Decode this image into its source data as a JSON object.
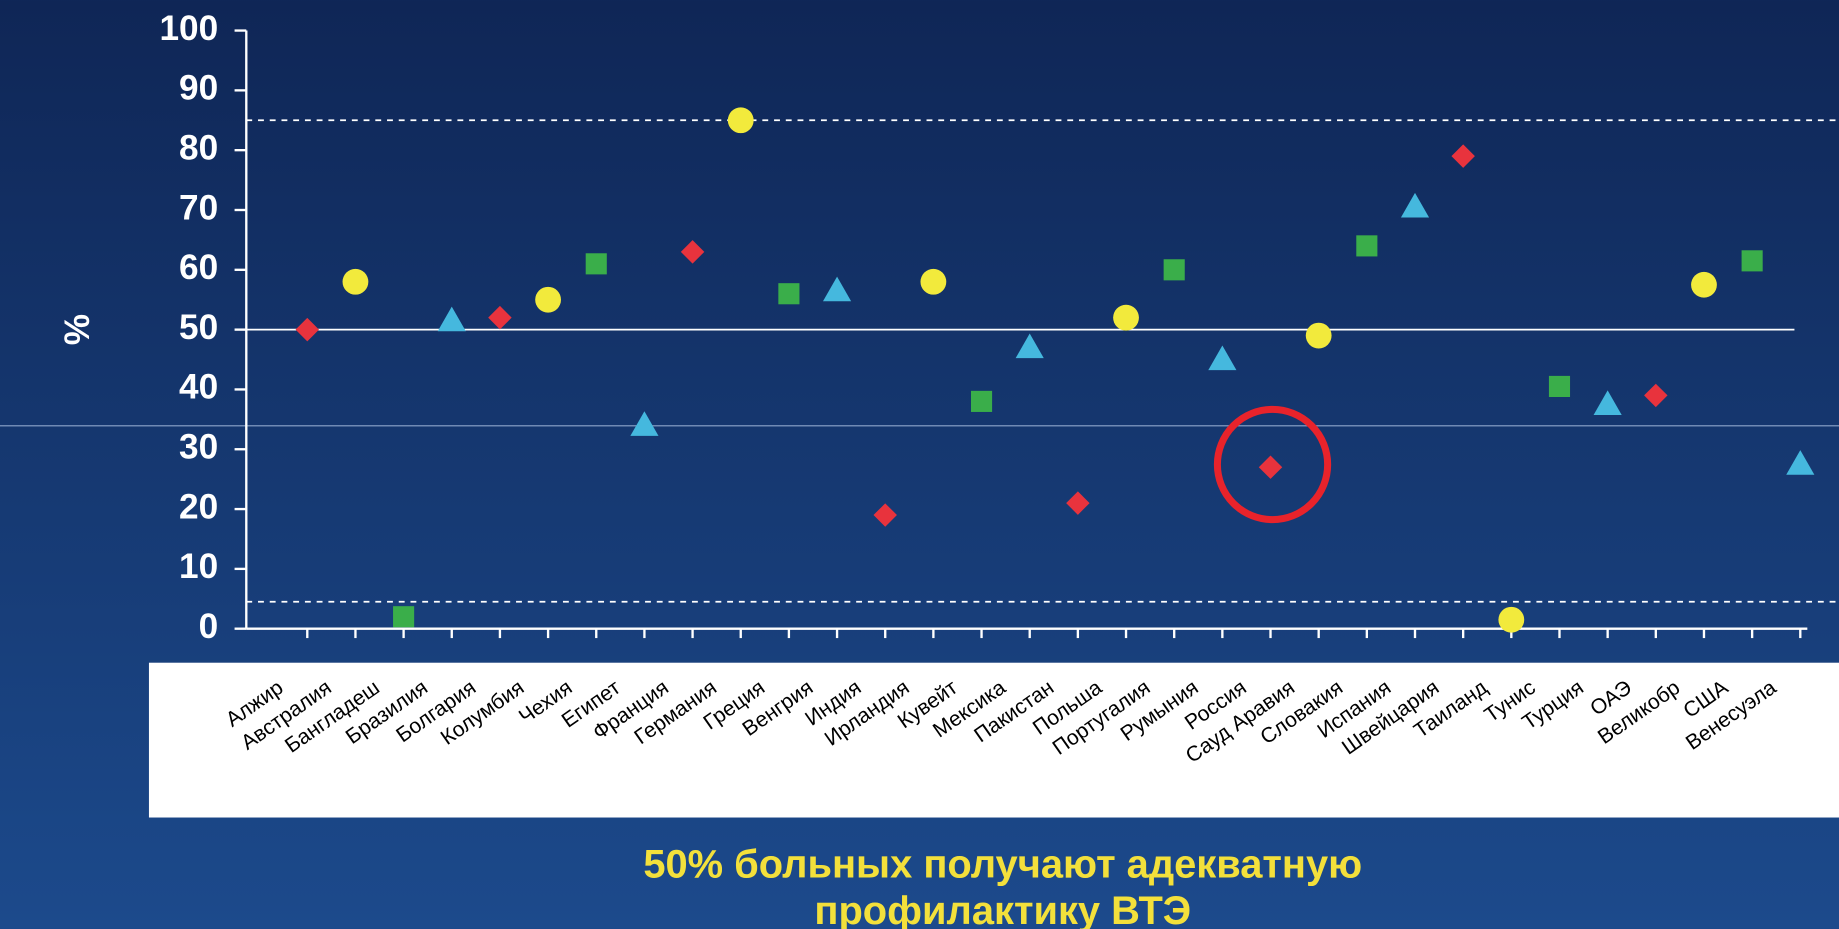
{
  "chart_data": {
    "type": "scatter",
    "y_label": "%",
    "title": [
      "50% больных получают адекватную",
      "профилактику ВТЭ"
    ],
    "categories": [
      "Алжир",
      "Австралия",
      "Бангладеш",
      "Бразилия",
      "Болгария",
      "Колумбия",
      "Чехия",
      "Египет",
      "Франция",
      "Германия",
      "Греция",
      "Венгрия",
      "Индия",
      "Ирландия",
      "Кувейт",
      "Мексика",
      "Пакистан",
      "Польша",
      "Португалия",
      "Румыния",
      "Россия",
      "Сауд Аравия",
      "Словакия",
      "Испания",
      "Швейцария",
      "Таиланд",
      "Тунис",
      "Турция",
      "ОАЭ",
      "Великобр",
      "США",
      "Венесуэла"
    ],
    "values": [
      50,
      58,
      2,
      51.5,
      52,
      55,
      61,
      34,
      63,
      85,
      56,
      56.5,
      19,
      58,
      38,
      47,
      21,
      52,
      60,
      45,
      27,
      49,
      64,
      70.5,
      79,
      1.5,
      40.5,
      37.5,
      39,
      57.5,
      61.5,
      27.5
    ],
    "markers": [
      {
        "shape": "diamond",
        "color": "#e8333d"
      },
      {
        "shape": "circle",
        "color": "#f2ea3c"
      },
      {
        "shape": "square",
        "color": "#3aae4a"
      },
      {
        "shape": "triangle",
        "color": "#45b8de"
      }
    ],
    "ylim": [
      0,
      100
    ],
    "yticks": [
      0,
      10,
      20,
      30,
      40,
      50,
      60,
      70,
      80,
      90,
      100
    ],
    "reference_lines": [
      {
        "value": 85,
        "style": "dashed"
      },
      {
        "value": 50,
        "style": "solid"
      },
      {
        "value": 4.5,
        "style": "dashed"
      }
    ]
  }
}
